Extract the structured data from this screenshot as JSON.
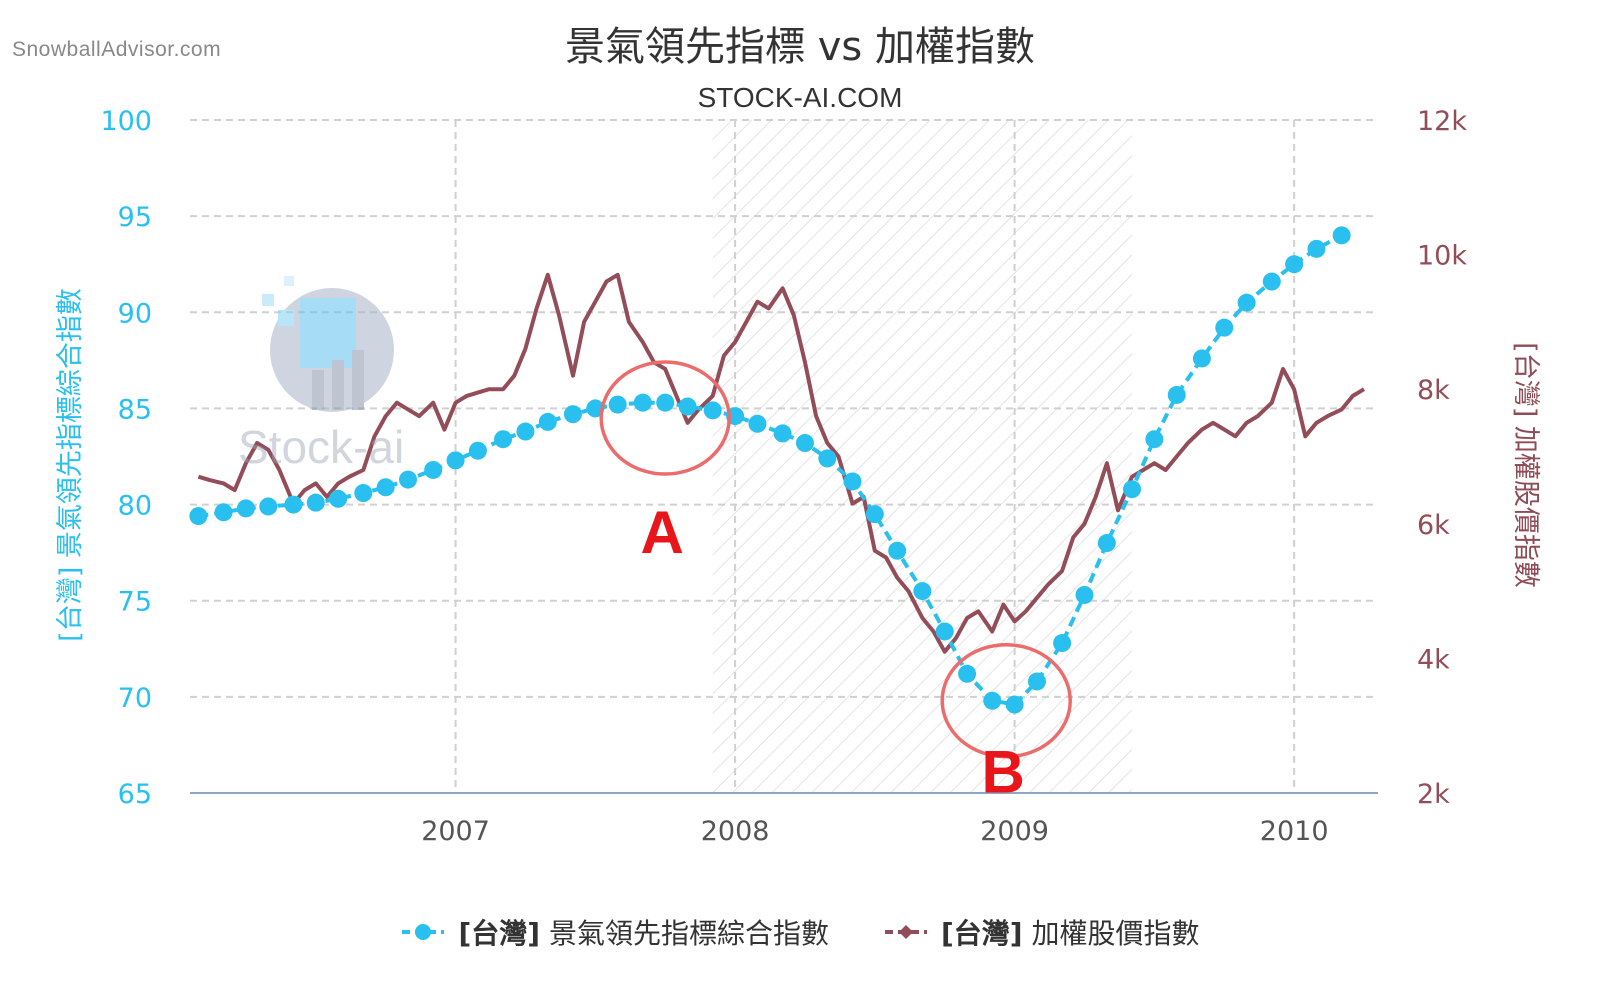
{
  "watermark": "SnowballAdvisor.com",
  "logo": {
    "text": "Stock-ai"
  },
  "chart_data": {
    "type": "line",
    "title": "景氣領先指標 vs 加權指數",
    "subtitle": "STOCK-AI.COM",
    "ylabel_left": "[台灣] 景氣領先指標綜合指數",
    "ylabel_right": "[台灣] 加權股價指數",
    "x_ticks": [
      "2007",
      "2008",
      "2009",
      "2010"
    ],
    "x_range": [
      2006.05,
      2010.3
    ],
    "y_left_ticks": [
      "65",
      "70",
      "75",
      "80",
      "85",
      "90",
      "95",
      "100"
    ],
    "y_left_range": [
      65,
      100
    ],
    "y_right_ticks": [
      "2k",
      "4k",
      "6k",
      "8k",
      "10k",
      "12k"
    ],
    "y_right_range": [
      2000,
      12000
    ],
    "grid": true,
    "legend_position": "bottom",
    "shaded_region": [
      2007.92,
      2009.42
    ],
    "colors": {
      "leading": "#29c0ef",
      "taiex": "#934d59",
      "circle": "#ec6b6b",
      "annotation": "#e8161b"
    },
    "annotations": [
      {
        "label": "A",
        "x": 2007.75,
        "y_left": 84.5
      },
      {
        "label": "B",
        "x": 2008.97,
        "y_left": 69.8
      }
    ],
    "series": [
      {
        "name": "[台灣] 景氣領先指標綜合指數",
        "axis": "left",
        "x": [
          2006.08,
          2006.17,
          2006.25,
          2006.33,
          2006.42,
          2006.5,
          2006.58,
          2006.67,
          2006.75,
          2006.83,
          2006.92,
          2007.0,
          2007.08,
          2007.17,
          2007.25,
          2007.33,
          2007.42,
          2007.5,
          2007.58,
          2007.67,
          2007.75,
          2007.83,
          2007.92,
          2008.0,
          2008.08,
          2008.17,
          2008.25,
          2008.33,
          2008.42,
          2008.5,
          2008.58,
          2008.67,
          2008.75,
          2008.83,
          2008.92,
          2009.0,
          2009.08,
          2009.17,
          2009.25,
          2009.33,
          2009.42,
          2009.5,
          2009.58,
          2009.67,
          2009.75,
          2009.83,
          2009.92,
          2010.0,
          2010.08,
          2010.17
        ],
        "values": [
          79.4,
          79.6,
          79.8,
          79.9,
          80.0,
          80.1,
          80.3,
          80.6,
          80.9,
          81.3,
          81.8,
          82.3,
          82.8,
          83.4,
          83.8,
          84.3,
          84.7,
          85.0,
          85.2,
          85.3,
          85.3,
          85.1,
          84.9,
          84.6,
          84.2,
          83.7,
          83.2,
          82.4,
          81.2,
          79.5,
          77.6,
          75.5,
          73.4,
          71.2,
          69.8,
          69.6,
          70.8,
          72.8,
          75.3,
          78.0,
          80.8,
          83.4,
          85.7,
          87.6,
          89.2,
          90.5,
          91.6,
          92.5,
          93.3,
          94.0
        ]
      },
      {
        "name": "[台灣] 加權股價指數",
        "axis": "right",
        "x": [
          2006.08,
          2006.12,
          2006.17,
          2006.21,
          2006.25,
          2006.29,
          2006.33,
          2006.37,
          2006.42,
          2006.46,
          2006.5,
          2006.54,
          2006.58,
          2006.62,
          2006.67,
          2006.71,
          2006.75,
          2006.79,
          2006.83,
          2006.87,
          2006.92,
          2006.96,
          2007.0,
          2007.04,
          2007.08,
          2007.12,
          2007.17,
          2007.21,
          2007.25,
          2007.29,
          2007.33,
          2007.37,
          2007.42,
          2007.46,
          2007.5,
          2007.54,
          2007.58,
          2007.62,
          2007.67,
          2007.71,
          2007.75,
          2007.79,
          2007.83,
          2007.87,
          2007.92,
          2007.96,
          2008.0,
          2008.04,
          2008.08,
          2008.12,
          2008.17,
          2008.21,
          2008.25,
          2008.29,
          2008.33,
          2008.37,
          2008.42,
          2008.46,
          2008.5,
          2008.54,
          2008.58,
          2008.62,
          2008.67,
          2008.71,
          2008.75,
          2008.79,
          2008.83,
          2008.87,
          2008.92,
          2008.96,
          2009.0,
          2009.04,
          2009.08,
          2009.12,
          2009.17,
          2009.21,
          2009.25,
          2009.29,
          2009.33,
          2009.37,
          2009.42,
          2009.46,
          2009.5,
          2009.54,
          2009.58,
          2009.62,
          2009.67,
          2009.71,
          2009.75,
          2009.79,
          2009.83,
          2009.87,
          2009.92,
          2009.96,
          2010.0,
          2010.04,
          2010.08,
          2010.12,
          2010.17,
          2010.21,
          2010.25
        ],
        "values": [
          6700,
          6650,
          6600,
          6500,
          6900,
          7200,
          7100,
          6800,
          6300,
          6500,
          6600,
          6400,
          6600,
          6700,
          6800,
          7300,
          7600,
          7800,
          7700,
          7600,
          7800,
          7400,
          7800,
          7900,
          7950,
          8000,
          8000,
          8200,
          8600,
          9200,
          9700,
          9100,
          8200,
          9000,
          9300,
          9600,
          9700,
          9000,
          8700,
          8400,
          8300,
          7900,
          7500,
          7700,
          7900,
          8500,
          8700,
          9000,
          9300,
          9200,
          9500,
          9100,
          8400,
          7600,
          7200,
          7000,
          6300,
          6400,
          5600,
          5500,
          5200,
          5000,
          4600,
          4400,
          4100,
          4300,
          4600,
          4700,
          4400,
          4800,
          4550,
          4700,
          4900,
          5100,
          5300,
          5800,
          6000,
          6400,
          6900,
          6200,
          6700,
          6800,
          6900,
          6800,
          7000,
          7200,
          7400,
          7500,
          7400,
          7300,
          7500,
          7600,
          7800,
          8300,
          8000,
          7300,
          7500,
          7600,
          7700,
          7900,
          8000
        ]
      }
    ]
  },
  "legend": {
    "leading": {
      "prefix": "[台灣]",
      "label": "景氣領先指標綜合指數"
    },
    "taiex": {
      "prefix": "[台灣]",
      "label": "加權股價指數"
    }
  }
}
